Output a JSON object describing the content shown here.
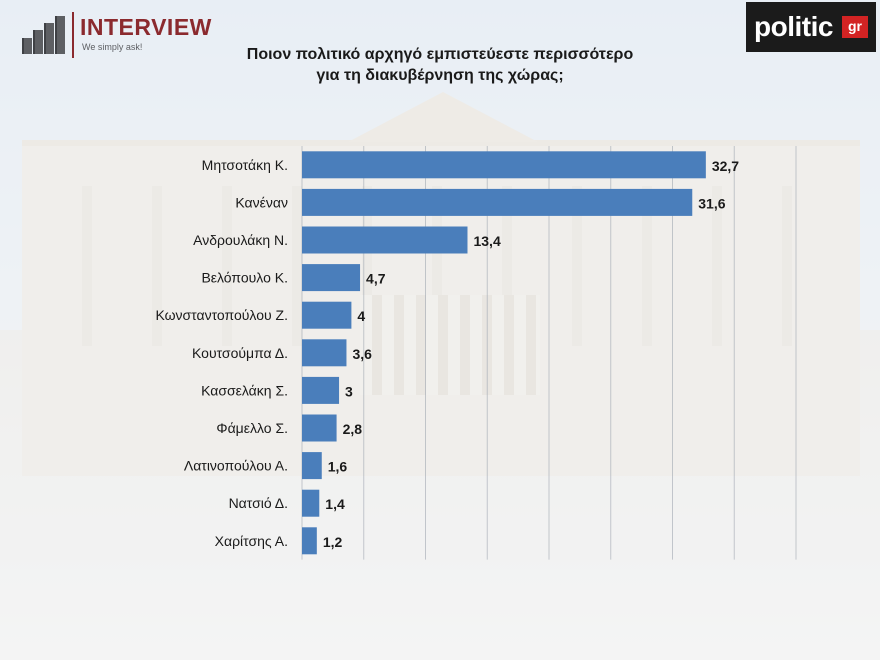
{
  "header": {
    "brand_left": "INTERVIEW",
    "brand_left_tagline": "We simply ask!",
    "brand_right": "politic",
    "brand_right_suffix": "gr"
  },
  "colors": {
    "bar": "#4a7ebb",
    "brand_left": "#8b2a2e",
    "brand_right_bg": "#1b1b1b",
    "brand_right_badge": "#d32323"
  },
  "chart_data": {
    "type": "bar",
    "orientation": "horizontal",
    "title": "Ποιον πολιτικό αρχηγό εμπιστεύεστε περισσότερο για τη διακυβέρνηση της χώρας;",
    "title_lines": [
      "Ποιον πολιτικό αρχηγό εμπιστεύεστε περισσότερο",
      "για τη διακυβέρνηση της χώρας;"
    ],
    "categories": [
      "Μητσοτάκη Κ.",
      "Κανέναν",
      "Ανδρουλάκη Ν.",
      "Βελόπουλο Κ.",
      "Κωνσταντοπούλου Ζ.",
      "Κουτσούμπα Δ.",
      "Κασσελάκη Σ.",
      "Φάμελλο Σ.",
      "Λατινοπούλου Α.",
      "Νατσιό Δ.",
      "Χαρίτσης Α."
    ],
    "values": [
      32.7,
      31.6,
      13.4,
      4.7,
      4,
      3.6,
      3,
      2.8,
      1.6,
      1.4,
      1.2
    ],
    "value_labels": [
      "32,7",
      "31,6",
      "13,4",
      "4,7",
      "4",
      "3,6",
      "3",
      "2,8",
      "1,6",
      "1,4",
      "1,2"
    ],
    "xlim": [
      0,
      40
    ],
    "grid": true,
    "xlabel": "",
    "ylabel": ""
  }
}
